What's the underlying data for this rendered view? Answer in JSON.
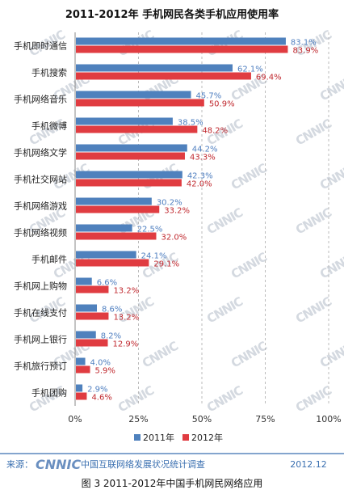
{
  "chart_data": {
    "type": "bar",
    "orientation": "horizontal",
    "title": "2011-2012年 手机网民各类手机应用使用率",
    "categories": [
      "手机即时通信",
      "手机搜索",
      "手机网络音乐",
      "手机微博",
      "手机网络文学",
      "手机社交网站",
      "手机网络游戏",
      "手机网络视频",
      "手机邮件",
      "手机网上购物",
      "手机在线支付",
      "手机网上银行",
      "手机旅行预订",
      "手机团购"
    ],
    "series": [
      {
        "name": "2011年",
        "color": "#4f81bd",
        "values": [
          83.1,
          62.1,
          45.7,
          38.5,
          44.2,
          42.3,
          30.2,
          22.5,
          24.1,
          6.6,
          8.6,
          8.2,
          4.0,
          2.9
        ]
      },
      {
        "name": "2012年",
        "color": "#e03c41",
        "values": [
          83.9,
          69.4,
          50.9,
          48.2,
          43.3,
          42.0,
          33.2,
          32.0,
          29.1,
          13.2,
          13.2,
          12.9,
          5.9,
          4.6
        ]
      }
    ],
    "xlim": [
      0,
      100
    ],
    "xticks": [
      "0%",
      "25%",
      "50%",
      "75%",
      "100%"
    ],
    "value_labels": [
      [
        "83.1%",
        "83.9%"
      ],
      [
        "62.1%",
        "69.4%"
      ],
      [
        "45.7%",
        "50.9%"
      ],
      [
        "38.5%",
        "48.2%"
      ],
      [
        "44.2%",
        "43.3%"
      ],
      [
        "42.3%",
        "42.0%"
      ],
      [
        "30.2%",
        "33.2%"
      ],
      [
        "22.5%",
        "32.0%"
      ],
      [
        "24.1%",
        "29.1%"
      ],
      [
        "6.6%",
        "13.2%"
      ],
      [
        "8.6%",
        "13.2%"
      ],
      [
        "8.2%",
        "12.9%"
      ],
      [
        "4.0%",
        "5.9%"
      ],
      [
        "2.9%",
        "4.6%"
      ]
    ],
    "grid": true,
    "legend": "bottom"
  },
  "footer": {
    "source_label": "来源：",
    "logo_text": "CNNIC",
    "org_name": "中国互联网络发展状况统计调查",
    "date": "2012.12"
  },
  "caption": "图 3 2011-2012年中国手机网民网络应用"
}
